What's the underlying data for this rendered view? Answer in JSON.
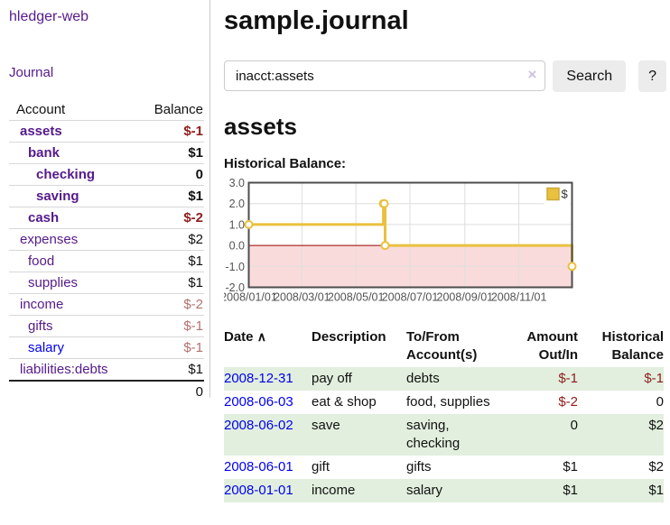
{
  "app": {
    "brand": "hledger-web"
  },
  "nav": {
    "journal": "Journal"
  },
  "sidebar": {
    "headers": {
      "account": "Account",
      "balance": "Balance"
    },
    "accounts": [
      {
        "name": "assets",
        "level": 1,
        "balance": "$-1",
        "bold": true,
        "neg": true,
        "blue": false
      },
      {
        "name": "bank",
        "level": 2,
        "balance": "$1",
        "bold": true,
        "neg": false,
        "blue": false
      },
      {
        "name": "checking",
        "level": 3,
        "balance": "0",
        "bold": true,
        "neg": false,
        "blue": false
      },
      {
        "name": "saving",
        "level": 3,
        "balance": "$1",
        "bold": true,
        "neg": false,
        "blue": false
      },
      {
        "name": "cash",
        "level": 2,
        "balance": "$-2",
        "bold": true,
        "neg": true,
        "blue": false
      },
      {
        "name": "expenses",
        "level": 1,
        "balance": "$2",
        "bold": false,
        "neg": false,
        "blue": false
      },
      {
        "name": "food",
        "level": 2,
        "balance": "$1",
        "bold": false,
        "neg": false,
        "blue": false
      },
      {
        "name": "supplies",
        "level": 2,
        "balance": "$1",
        "bold": false,
        "neg": false,
        "blue": false
      },
      {
        "name": "income",
        "level": 1,
        "balance": "$-2",
        "bold": false,
        "neg": true,
        "blue": false
      },
      {
        "name": "gifts",
        "level": 2,
        "balance": "$-1",
        "bold": false,
        "neg": true,
        "blue": false
      },
      {
        "name": "salary",
        "level": 2,
        "balance": "$-1",
        "bold": false,
        "neg": true,
        "blue": true
      },
      {
        "name": "liabilities:debts",
        "level": 1,
        "balance": "$1",
        "bold": false,
        "neg": false,
        "blue": false
      }
    ],
    "total": "0"
  },
  "header": {
    "title": "sample.journal"
  },
  "search": {
    "value": "inacct:assets",
    "clear_icon": "×",
    "button_label": "Search",
    "help_label": "?"
  },
  "account_page": {
    "heading": "assets",
    "chart_label": "Historical Balance:"
  },
  "chart_data": {
    "type": "line",
    "subtype": "step",
    "title": "Historical Balance",
    "series": [
      {
        "name": "$",
        "color": "#e9c13f",
        "points": [
          [
            "2008/01/01",
            1
          ],
          [
            "2008/06/01",
            2
          ],
          [
            "2008/06/02",
            2
          ],
          [
            "2008/06/03",
            0
          ],
          [
            "2008/12/31",
            -1
          ]
        ]
      }
    ],
    "ylim": [
      -2,
      3
    ],
    "yticks": [
      "3.0",
      "2.0",
      "1.0",
      "0.0",
      "-1.0",
      "-2.0"
    ],
    "xlim": [
      "2008/01/01",
      "2008/12/31"
    ],
    "xticks": [
      "2008/01/01",
      "2008/03/01",
      "2008/05/01",
      "2008/07/01",
      "2008/09/01",
      "2008/11/01"
    ],
    "legend": [
      "$"
    ],
    "legend_position": "top-right",
    "grid": true,
    "colors": {
      "border": "#4d4d4d",
      "gridline": "#dedede",
      "tick_text": "#545454",
      "zero_line": "#990000",
      "negative_region": "#fadbdb",
      "marker_fill": "#ffffff"
    }
  },
  "transactions": {
    "headers": {
      "date": "Date",
      "sort_icon": "∧",
      "description": "Description",
      "accounts": [
        "To/From",
        "Account(s)"
      ],
      "amount": [
        "Amount",
        "Out/In"
      ],
      "balance": [
        "Historical",
        "Balance"
      ]
    },
    "rows": [
      {
        "date": "2008-12-31",
        "description": "pay off",
        "accounts": "debts",
        "amount": "$-1",
        "amount_neg": true,
        "balance": "$-1",
        "balance_neg": true
      },
      {
        "date": "2008-06-03",
        "description": "eat & shop",
        "accounts": "food, supplies",
        "amount": "$-2",
        "amount_neg": true,
        "balance": "0",
        "balance_neg": false
      },
      {
        "date": "2008-06-02",
        "description": "save",
        "accounts": "saving, checking",
        "amount": "0",
        "amount_neg": false,
        "balance": "$2",
        "balance_neg": false
      },
      {
        "date": "2008-06-01",
        "description": "gift",
        "accounts": "gifts",
        "amount": "$1",
        "amount_neg": false,
        "balance": "$2",
        "balance_neg": false
      },
      {
        "date": "2008-01-01",
        "description": "income",
        "accounts": "salary",
        "amount": "$1",
        "amount_neg": false,
        "balance": "$1",
        "balance_neg": false
      }
    ]
  },
  "colors": {
    "link_purple": "#551a8b",
    "link_blue": "#0000ee",
    "negative_strong": "#8f1d1d",
    "negative_muted": "#b3716f",
    "row_stripe_green": "#e2efde"
  }
}
